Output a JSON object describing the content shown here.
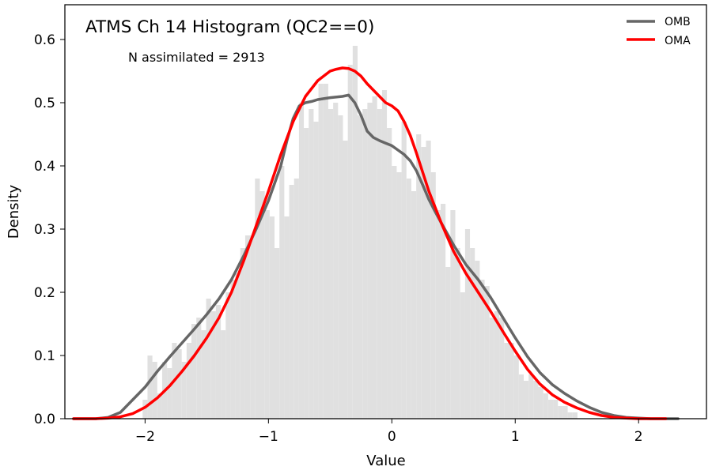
{
  "chart_data": {
    "type": "bar",
    "title": "ATMS Ch 14 Histogram (QC2==0)",
    "annotation": "N assimilated = 2913",
    "xlabel": "Value",
    "ylabel": "Density",
    "xlim": [
      -2.65,
      2.55
    ],
    "ylim": [
      0.0,
      0.655
    ],
    "xticks": [
      -2,
      -1,
      0,
      1,
      2
    ],
    "xtick_labels": [
      "−2",
      "−1",
      "0",
      "1",
      "2"
    ],
    "yticks": [
      0.0,
      0.1,
      0.2,
      0.3,
      0.4,
      0.5,
      0.6
    ],
    "ytick_labels": [
      "0.0",
      "0.1",
      "0.2",
      "0.3",
      "0.4",
      "0.5",
      "0.6"
    ],
    "grid": false,
    "legend_position": "top-right",
    "histogram": {
      "color": "#e0e0e0",
      "bin_width": 0.0396,
      "bin_edges_start": -2.02,
      "values": [
        0.03,
        0.1,
        0.09,
        0.04,
        0.09,
        0.08,
        0.12,
        0.11,
        0.09,
        0.12,
        0.15,
        0.16,
        0.14,
        0.19,
        0.17,
        0.18,
        0.14,
        0.2,
        0.22,
        0.23,
        0.27,
        0.29,
        0.29,
        0.38,
        0.36,
        0.33,
        0.32,
        0.27,
        0.4,
        0.32,
        0.37,
        0.38,
        0.5,
        0.46,
        0.49,
        0.47,
        0.53,
        0.53,
        0.49,
        0.5,
        0.48,
        0.44,
        0.56,
        0.59,
        0.48,
        0.49,
        0.5,
        0.51,
        0.49,
        0.52,
        0.46,
        0.4,
        0.39,
        0.47,
        0.38,
        0.36,
        0.45,
        0.43,
        0.44,
        0.39,
        0.33,
        0.34,
        0.24,
        0.33,
        0.27,
        0.2,
        0.3,
        0.27,
        0.25,
        0.22,
        0.21,
        0.16,
        0.17,
        0.16,
        0.12,
        0.12,
        0.1,
        0.07,
        0.06,
        0.07,
        0.06,
        0.05,
        0.04,
        0.03,
        0.03,
        0.02,
        0.02,
        0.01,
        0.01,
        0.0
      ]
    },
    "series": [
      {
        "name": "OMB",
        "color": "#666666",
        "x": [
          -2.58,
          -2.4,
          -2.3,
          -2.2,
          -2.1,
          -2.0,
          -1.9,
          -1.8,
          -1.7,
          -1.6,
          -1.5,
          -1.4,
          -1.3,
          -1.2,
          -1.1,
          -1.0,
          -0.9,
          -0.85,
          -0.8,
          -0.75,
          -0.7,
          -0.65,
          -0.6,
          -0.5,
          -0.4,
          -0.35,
          -0.3,
          -0.25,
          -0.2,
          -0.15,
          -0.1,
          -0.05,
          0.0,
          0.05,
          0.1,
          0.15,
          0.2,
          0.25,
          0.3,
          0.35,
          0.4,
          0.5,
          0.6,
          0.7,
          0.8,
          0.9,
          1.0,
          1.1,
          1.2,
          1.3,
          1.4,
          1.5,
          1.6,
          1.7,
          1.8,
          1.9,
          2.0,
          2.1,
          2.2,
          2.32
        ],
        "y": [
          0.0,
          0.0,
          0.002,
          0.01,
          0.03,
          0.05,
          0.075,
          0.098,
          0.12,
          0.142,
          0.165,
          0.19,
          0.22,
          0.258,
          0.3,
          0.345,
          0.4,
          0.44,
          0.475,
          0.495,
          0.5,
          0.502,
          0.505,
          0.508,
          0.51,
          0.512,
          0.5,
          0.48,
          0.455,
          0.445,
          0.44,
          0.436,
          0.432,
          0.425,
          0.418,
          0.408,
          0.392,
          0.37,
          0.347,
          0.328,
          0.31,
          0.275,
          0.244,
          0.22,
          0.192,
          0.16,
          0.128,
          0.098,
          0.073,
          0.054,
          0.04,
          0.028,
          0.018,
          0.01,
          0.005,
          0.002,
          0.001,
          0.0,
          0.0,
          0.0
        ]
      },
      {
        "name": "OMA",
        "color": "#ff0000",
        "x": [
          -2.58,
          -2.4,
          -2.3,
          -2.2,
          -2.1,
          -2.0,
          -1.9,
          -1.8,
          -1.7,
          -1.6,
          -1.5,
          -1.4,
          -1.3,
          -1.2,
          -1.1,
          -1.0,
          -0.9,
          -0.8,
          -0.7,
          -0.6,
          -0.5,
          -0.45,
          -0.4,
          -0.35,
          -0.3,
          -0.25,
          -0.2,
          -0.15,
          -0.1,
          -0.05,
          0.0,
          0.05,
          0.1,
          0.15,
          0.2,
          0.25,
          0.3,
          0.4,
          0.5,
          0.6,
          0.7,
          0.8,
          0.9,
          1.0,
          1.1,
          1.2,
          1.3,
          1.4,
          1.5,
          1.6,
          1.7,
          1.8,
          1.9,
          2.0,
          2.1,
          2.22
        ],
        "y": [
          0.0,
          0.0,
          0.001,
          0.003,
          0.008,
          0.018,
          0.033,
          0.052,
          0.075,
          0.1,
          0.128,
          0.16,
          0.2,
          0.25,
          0.305,
          0.36,
          0.418,
          0.47,
          0.51,
          0.535,
          0.55,
          0.553,
          0.555,
          0.554,
          0.55,
          0.542,
          0.53,
          0.52,
          0.51,
          0.5,
          0.495,
          0.487,
          0.47,
          0.448,
          0.42,
          0.39,
          0.36,
          0.31,
          0.265,
          0.23,
          0.2,
          0.17,
          0.138,
          0.107,
          0.078,
          0.055,
          0.038,
          0.026,
          0.017,
          0.01,
          0.005,
          0.002,
          0.001,
          0.0,
          0.0,
          0.0
        ]
      }
    ]
  }
}
